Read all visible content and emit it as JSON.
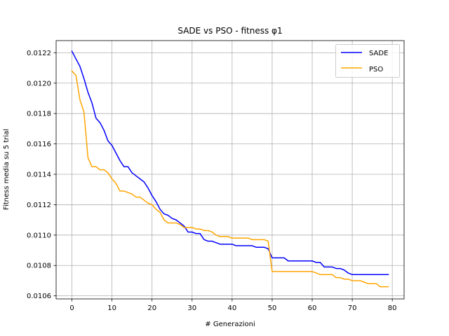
{
  "chart_data": {
    "type": "line",
    "title": "SADE vs PSO - fitness φ1",
    "xlabel": "# Generazioni",
    "ylabel": "Fitness media su 5 trial",
    "xlim": [
      -3.95,
      82.95
    ],
    "ylim": [
      0.01058,
      0.01228
    ],
    "xticks": [
      0,
      10,
      20,
      30,
      40,
      50,
      60,
      70,
      80
    ],
    "xtick_labels": [
      "0",
      "10",
      "20",
      "30",
      "40",
      "50",
      "60",
      "70",
      "80"
    ],
    "yticks": [
      0.0106,
      0.0108,
      0.011,
      0.0112,
      0.0114,
      0.0116,
      0.0118,
      0.012,
      0.0122
    ],
    "ytick_labels": [
      "0.0106",
      "0.0108",
      "0.0110",
      "0.0112",
      "0.0114",
      "0.0116",
      "0.0118",
      "0.0120",
      "0.0122"
    ],
    "grid": true,
    "legend_position": "top-right",
    "series": [
      {
        "name": "SADE",
        "color": "#0000ff",
        "x": [
          0,
          1,
          2,
          3,
          4,
          5,
          6,
          7,
          8,
          9,
          10,
          11,
          12,
          13,
          14,
          15,
          16,
          17,
          18,
          19,
          20,
          21,
          22,
          23,
          24,
          25,
          26,
          27,
          28,
          29,
          30,
          31,
          32,
          33,
          34,
          35,
          36,
          37,
          38,
          39,
          40,
          41,
          42,
          43,
          44,
          45,
          46,
          47,
          48,
          49,
          50,
          51,
          52,
          53,
          54,
          55,
          56,
          57,
          58,
          59,
          60,
          61,
          62,
          63,
          64,
          65,
          66,
          67,
          68,
          69,
          70,
          71,
          72,
          73,
          74,
          75,
          76,
          77,
          78,
          79
        ],
        "values": [
          0.01221,
          0.01216,
          0.01211,
          0.01203,
          0.01194,
          0.01187,
          0.01177,
          0.01174,
          0.01169,
          0.01162,
          0.01159,
          0.01154,
          0.01149,
          0.01145,
          0.01145,
          0.01141,
          0.01139,
          0.01137,
          0.01135,
          0.01131,
          0.01126,
          0.01122,
          0.01117,
          0.01114,
          0.01113,
          0.01111,
          0.0111,
          0.01108,
          0.01106,
          0.01102,
          0.01102,
          0.01101,
          0.01101,
          0.01097,
          0.01096,
          0.01096,
          0.01095,
          0.01094,
          0.01094,
          0.01094,
          0.01094,
          0.01093,
          0.01093,
          0.01093,
          0.01093,
          0.01093,
          0.01092,
          0.01092,
          0.01092,
          0.01091,
          0.01085,
          0.01085,
          0.01085,
          0.01085,
          0.01083,
          0.01083,
          0.01083,
          0.01083,
          0.01083,
          0.01083,
          0.01083,
          0.01082,
          0.01082,
          0.01079,
          0.01079,
          0.01079,
          0.01078,
          0.01078,
          0.01077,
          0.01075,
          0.01074,
          0.01074,
          0.01074,
          0.01074,
          0.01074,
          0.01074,
          0.01074,
          0.01074,
          0.01074,
          0.01074
        ]
      },
      {
        "name": "PSO",
        "color": "#ffa500",
        "x": [
          0,
          1,
          2,
          3,
          4,
          5,
          6,
          7,
          8,
          9,
          10,
          11,
          12,
          13,
          14,
          15,
          16,
          17,
          18,
          19,
          20,
          21,
          22,
          23,
          24,
          25,
          26,
          27,
          28,
          29,
          30,
          31,
          32,
          33,
          34,
          35,
          36,
          37,
          38,
          39,
          40,
          41,
          42,
          43,
          44,
          45,
          46,
          47,
          48,
          49,
          50,
          51,
          52,
          53,
          54,
          55,
          56,
          57,
          58,
          59,
          60,
          61,
          62,
          63,
          64,
          65,
          66,
          67,
          68,
          69,
          70,
          71,
          72,
          73,
          74,
          75,
          76,
          77,
          78,
          79
        ],
        "values": [
          0.01208,
          0.01205,
          0.01189,
          0.01181,
          0.01151,
          0.01145,
          0.01145,
          0.01143,
          0.01143,
          0.01141,
          0.01137,
          0.01134,
          0.01129,
          0.01129,
          0.01128,
          0.01127,
          0.01125,
          0.01125,
          0.01123,
          0.01121,
          0.0112,
          0.01117,
          0.01115,
          0.0111,
          0.01108,
          0.01108,
          0.01108,
          0.01107,
          0.01105,
          0.01105,
          0.01105,
          0.01104,
          0.01104,
          0.01103,
          0.01103,
          0.01102,
          0.011,
          0.01099,
          0.01099,
          0.01099,
          0.01098,
          0.01098,
          0.01098,
          0.01098,
          0.01098,
          0.01097,
          0.01097,
          0.01097,
          0.01097,
          0.01096,
          0.01076,
          0.01076,
          0.01076,
          0.01076,
          0.01076,
          0.01076,
          0.01076,
          0.01076,
          0.01076,
          0.01076,
          0.01076,
          0.01075,
          0.01074,
          0.01074,
          0.01074,
          0.01074,
          0.01072,
          0.01072,
          0.01071,
          0.01071,
          0.0107,
          0.0107,
          0.0107,
          0.01069,
          0.01068,
          0.01068,
          0.01068,
          0.01066,
          0.01066,
          0.01066
        ]
      }
    ]
  }
}
